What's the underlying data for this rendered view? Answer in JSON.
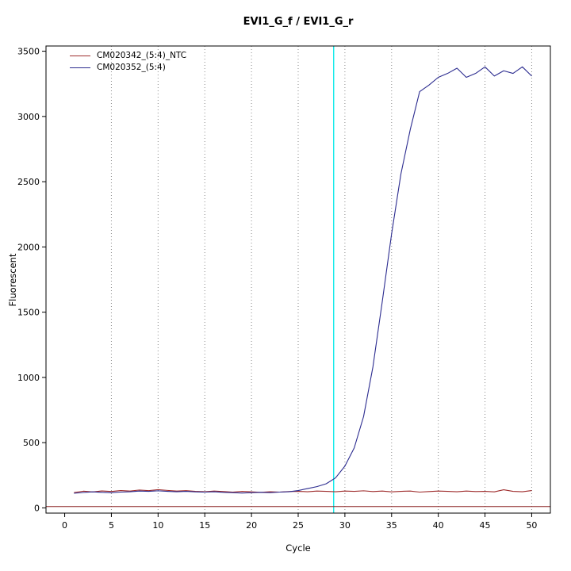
{
  "chart_data": {
    "type": "line",
    "title": "EVI1_G_f / EVI1_G_r",
    "xlabel": "Cycle",
    "ylabel": "Fluorescent",
    "xlim": [
      -2,
      52
    ],
    "ylim": [
      -40,
      3540
    ],
    "xticks": [
      0,
      5,
      10,
      15,
      20,
      25,
      30,
      35,
      40,
      45,
      50
    ],
    "yticks": [
      0,
      500,
      1000,
      1500,
      2000,
      2500,
      3000,
      3500
    ],
    "grid_x": [
      5,
      10,
      15,
      20,
      25,
      30,
      35,
      40,
      45,
      50
    ],
    "grid_style": "dotted",
    "legend_position": "top-left",
    "threshold_line": {
      "y": 10,
      "color": "#8b2323"
    },
    "ct_marker_line": {
      "x": 28.8,
      "color": "#00e8e8"
    },
    "x": [
      1,
      2,
      3,
      4,
      5,
      6,
      7,
      8,
      9,
      10,
      11,
      12,
      13,
      14,
      15,
      16,
      17,
      18,
      19,
      20,
      21,
      22,
      23,
      24,
      25,
      26,
      27,
      28,
      29,
      30,
      31,
      32,
      33,
      34,
      35,
      36,
      37,
      38,
      39,
      40,
      41,
      42,
      43,
      44,
      45,
      46,
      47,
      48,
      49,
      50
    ],
    "series": [
      {
        "name": "CM020342_(5:4)_NTC",
        "color": "#9e2b2b",
        "values": [
          118,
          128,
          122,
          130,
          126,
          133,
          129,
          137,
          132,
          140,
          134,
          129,
          132,
          127,
          124,
          129,
          125,
          121,
          127,
          123,
          119,
          124,
          121,
          125,
          127,
          124,
          129,
          127,
          124,
          129,
          127,
          131,
          125,
          129,
          123,
          127,
          129,
          121,
          125,
          129,
          127,
          124,
          129,
          125,
          127,
          123,
          139,
          127,
          124,
          133
        ]
      },
      {
        "name": "CM020352_(5:4)",
        "color": "#2b2b8f",
        "values": [
          112,
          118,
          123,
          119,
          117,
          121,
          124,
          129,
          127,
          131,
          127,
          124,
          127,
          123,
          121,
          124,
          119,
          117,
          114,
          117,
          119,
          117,
          121,
          124,
          133,
          148,
          163,
          185,
          230,
          320,
          460,
          700,
          1080,
          1580,
          2100,
          2560,
          2900,
          3190,
          3240,
          3300,
          3330,
          3370,
          3300,
          3330,
          3380,
          3310,
          3350,
          3330,
          3380,
          3310
        ]
      }
    ]
  }
}
